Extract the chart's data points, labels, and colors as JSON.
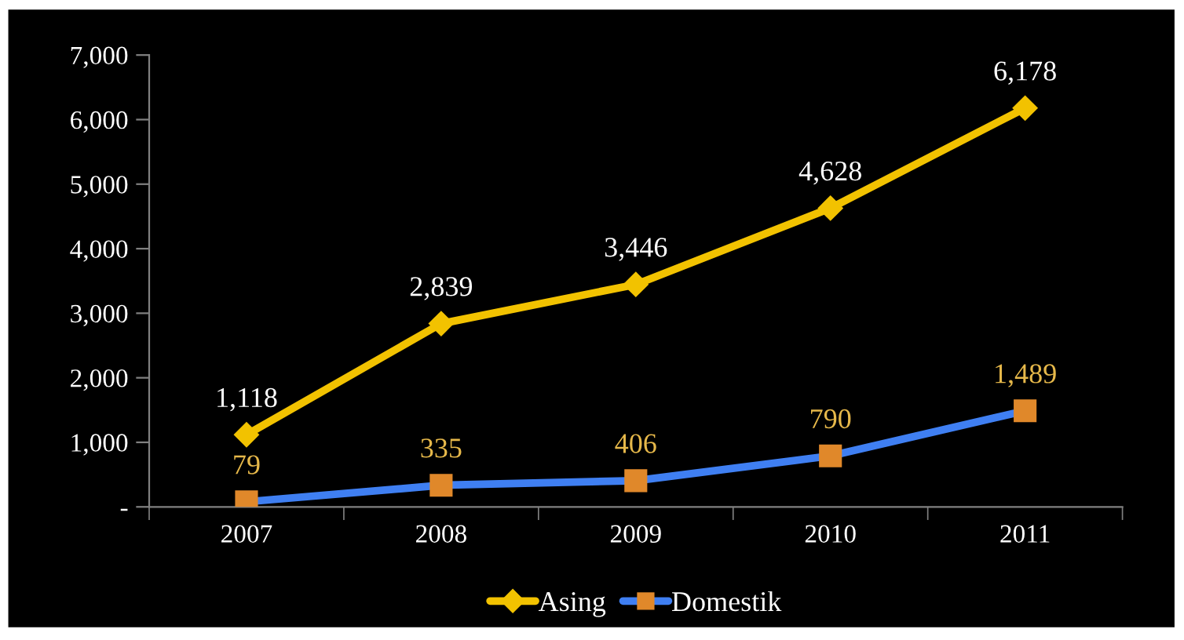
{
  "chart_data": {
    "type": "line",
    "categories": [
      "2007",
      "2008",
      "2009",
      "2010",
      "2011"
    ],
    "series": [
      {
        "name": "Asing",
        "color": "#f2c200",
        "marker": "diamond",
        "values": [
          1118,
          2839,
          3446,
          4628,
          6178
        ],
        "value_labels": [
          "1,118",
          "2,839",
          "3,446",
          "4,628",
          "6,178"
        ]
      },
      {
        "name": "Domestik",
        "color": "#3f7ff2",
        "marker": "square",
        "colors": [
          "#e0882a",
          "#e0882a",
          "#e0882a",
          "#e0882a",
          "#e0882a"
        ],
        "values": [
          79,
          335,
          406,
          790,
          1489
        ],
        "value_labels": [
          "79",
          "335",
          "406",
          "790",
          "1,489"
        ]
      }
    ],
    "ylim": [
      0,
      7000
    ],
    "yticks": [
      {
        "value": 0,
        "label": "-"
      },
      {
        "value": 1000,
        "label": "1,000"
      },
      {
        "value": 2000,
        "label": "2,000"
      },
      {
        "value": 3000,
        "label": "3,000"
      },
      {
        "value": 4000,
        "label": "4,000"
      },
      {
        "value": 5000,
        "label": "5,000"
      },
      {
        "value": 6000,
        "label": "6,000"
      },
      {
        "value": 7000,
        "label": "7,000"
      }
    ],
    "grid": false,
    "legend": "bottom",
    "line_style": "solid"
  }
}
